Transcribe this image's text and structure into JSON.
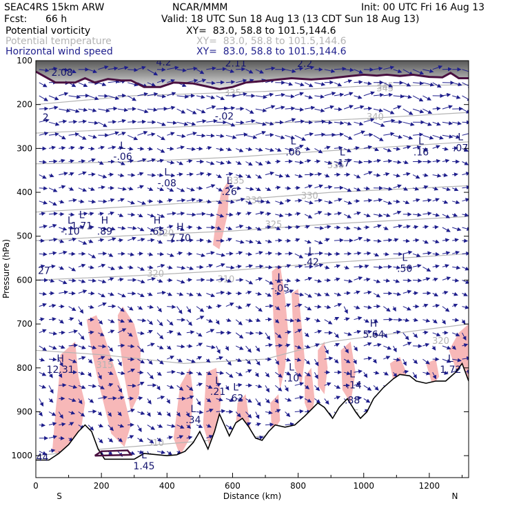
{
  "header": {
    "model": "SEAC4RS 15km ARW",
    "org": "NCAR/MMM",
    "init": "Init: 00 UTC Fri 16 Aug 13",
    "fcst_label": "Fcst:",
    "fcst_value": "66 h",
    "valid": "Valid: 18 UTC Sun 18 Aug 13 (13 CDT Sun 18 Aug 13)"
  },
  "fields": [
    {
      "name": "Potential vorticity",
      "xy": "XY=  83.0, 58.8 to 101.5,144.6",
      "color": "#000000"
    },
    {
      "name": "Potential temperature",
      "xy": "XY=  83.0, 58.8 to 101.5,144.6",
      "color": "#b4b4b4"
    },
    {
      "name": "Horizontal wind speed",
      "xy": "XY=  83.0, 58.8 to 101.5,144.6",
      "color": "#1e1e8c"
    }
  ],
  "chart_data": {
    "type": "cross-section",
    "xlabel": "Distance (km)",
    "ylabel": "Pressure (hPa)",
    "xlim": [
      0,
      1320
    ],
    "ylim": [
      1050,
      100
    ],
    "x_ticks": [
      0,
      200,
      400,
      600,
      800,
      1000,
      1200
    ],
    "y_ticks": [
      100,
      200,
      300,
      400,
      500,
      600,
      700,
      800,
      900,
      1000
    ],
    "endpoint_labels": {
      "left": "S",
      "right": "N"
    },
    "colors": {
      "pv_shade": "#f7b8b8",
      "theta": "#b4b4b4",
      "wind": "#1e1e8c",
      "terrain": "#000000",
      "tropopause": "#4a1040",
      "annot": "#14146e"
    },
    "terrain": [
      [
        0,
        1010
      ],
      [
        40,
        1010
      ],
      [
        70,
        995
      ],
      [
        100,
        975
      ],
      [
        130,
        945
      ],
      [
        150,
        930
      ],
      [
        170,
        945
      ],
      [
        190,
        985
      ],
      [
        210,
        1008
      ],
      [
        300,
        1008
      ],
      [
        330,
        995
      ],
      [
        400,
        1000
      ],
      [
        430,
        998
      ],
      [
        455,
        990
      ],
      [
        480,
        970
      ],
      [
        500,
        945
      ],
      [
        525,
        985
      ],
      [
        545,
        945
      ],
      [
        560,
        905
      ],
      [
        575,
        930
      ],
      [
        590,
        955
      ],
      [
        610,
        925
      ],
      [
        630,
        915
      ],
      [
        650,
        935
      ],
      [
        670,
        960
      ],
      [
        690,
        965
      ],
      [
        710,
        945
      ],
      [
        730,
        930
      ],
      [
        760,
        935
      ],
      [
        790,
        930
      ],
      [
        820,
        910
      ],
      [
        840,
        895
      ],
      [
        860,
        880
      ],
      [
        880,
        890
      ],
      [
        905,
        915
      ],
      [
        925,
        890
      ],
      [
        950,
        870
      ],
      [
        975,
        900
      ],
      [
        990,
        915
      ],
      [
        1010,
        900
      ],
      [
        1030,
        870
      ],
      [
        1060,
        845
      ],
      [
        1090,
        825
      ],
      [
        1110,
        815
      ],
      [
        1140,
        818
      ],
      [
        1160,
        830
      ],
      [
        1190,
        835
      ],
      [
        1220,
        830
      ],
      [
        1250,
        830
      ],
      [
        1280,
        810
      ],
      [
        1300,
        790
      ],
      [
        1320,
        830
      ]
    ],
    "theta_contours": [
      {
        "label": "345",
        "points": [
          [
            0,
            200
          ],
          [
            300,
            180
          ],
          [
            700,
            170
          ],
          [
            1000,
            158
          ],
          [
            1320,
            155
          ]
        ],
        "label_at": [
          1065,
          165
        ]
      },
      {
        "label": "340",
        "points": [
          [
            0,
            265
          ],
          [
            300,
            255
          ],
          [
            700,
            243
          ],
          [
            1000,
            232
          ],
          [
            1320,
            218
          ]
        ],
        "label_at": [
          1035,
          235
        ]
      },
      {
        "label": "335",
        "points": [
          [
            0,
            335
          ],
          [
            300,
            330
          ],
          [
            600,
            320
          ],
          [
            900,
            305
          ],
          [
            1320,
            285
          ]
        ],
        "label_at": [
          610,
          380
        ]
      },
      {
        "label": "330",
        "points": [
          [
            0,
            445
          ],
          [
            300,
            432
          ],
          [
            600,
            418
          ],
          [
            900,
            400
          ],
          [
            1320,
            385
          ]
        ],
        "label_at": [
          665,
          425
        ]
      },
      {
        "label": "325",
        "points": [
          [
            0,
            510
          ],
          [
            300,
            498
          ],
          [
            600,
            488
          ],
          [
            900,
            472
          ],
          [
            1320,
            455
          ]
        ],
        "label_at": [
          725,
          480
        ]
      },
      {
        "label": "320",
        "points": [
          [
            0,
            600
          ],
          [
            300,
            590
          ],
          [
            600,
            578
          ],
          [
            900,
            560
          ],
          [
            1320,
            540
          ]
        ],
        "label_at": [
          365,
          592
        ]
      },
      {
        "label": "315",
        "points": [
          [
            0,
            760
          ],
          [
            200,
            770
          ],
          [
            450,
            790
          ],
          [
            700,
            780
          ],
          [
            900,
            740
          ],
          [
            1320,
            700
          ]
        ],
        "label_at": [
          210,
          800
        ]
      },
      {
        "label": "310",
        "points": [
          [
            0,
            1000
          ],
          [
            200,
            985
          ],
          [
            450,
            970
          ],
          [
            700,
            955
          ]
        ],
        "label_at": [
          365,
          978
        ]
      }
    ],
    "theta_extra_labels": [
      {
        "label": "335",
        "at": [
          600,
          180
        ]
      },
      {
        "label": "345",
        "at": [
          1065,
          170
        ]
      },
      {
        "label": "330",
        "at": [
          835,
          415
        ]
      },
      {
        "label": "335",
        "at": [
          915,
          345
        ]
      },
      {
        "label": "310",
        "at": [
          580,
          605
        ]
      },
      {
        "label": "320",
        "at": [
          395,
          500
        ]
      },
      {
        "label": "315",
        "at": [
          960,
          910
        ]
      },
      {
        "label": "320",
        "at": [
          1235,
          745
        ]
      }
    ],
    "tropopause": [
      [
        0,
        125
      ],
      [
        60,
        150
      ],
      [
        120,
        150
      ],
      [
        150,
        140
      ],
      [
        180,
        150
      ],
      [
        220,
        142
      ],
      [
        260,
        145
      ],
      [
        290,
        145
      ],
      [
        330,
        160
      ],
      [
        380,
        160
      ],
      [
        420,
        150
      ],
      [
        480,
        152
      ],
      [
        560,
        165
      ],
      [
        600,
        160
      ],
      [
        640,
        150
      ],
      [
        700,
        146
      ],
      [
        780,
        140
      ],
      [
        840,
        143
      ],
      [
        900,
        140
      ],
      [
        960,
        135
      ],
      [
        1000,
        132
      ],
      [
        1040,
        134
      ],
      [
        1070,
        132
      ],
      [
        1110,
        135
      ],
      [
        1150,
        132
      ],
      [
        1200,
        137
      ],
      [
        1240,
        138
      ],
      [
        1265,
        128
      ],
      [
        1290,
        140
      ],
      [
        1320,
        140
      ]
    ],
    "pv_labels": [
      {
        "type": "",
        "value": "2.08",
        "x": 80,
        "p": 128
      },
      {
        "type": "",
        "value": "4.2",
        "x": 390,
        "p": 105
      },
      {
        "type": "",
        "value": "2.11",
        "x": 610,
        "p": 107
      },
      {
        "type": "",
        "value": "2.2",
        "x": 820,
        "p": 108
      },
      {
        "type": "",
        "value": "2",
        "x": 30,
        "p": 230
      },
      {
        "type": "",
        "value": "-.02",
        "x": 575,
        "p": 228
      },
      {
        "type": "L",
        "value": "-.06",
        "x": 265,
        "p": 320
      },
      {
        "type": "L",
        "value": "-.08",
        "x": 400,
        "p": 380
      },
      {
        "type": "L",
        "value": ".26",
        "x": 590,
        "p": 400
      },
      {
        "type": "L",
        "value": ".06",
        "x": 785,
        "p": 310
      },
      {
        "type": "L",
        "value": ".17",
        "x": 935,
        "p": 335
      },
      {
        "type": "L",
        "value": ".16",
        "x": 1175,
        "p": 310
      },
      {
        "type": "L",
        "value": ".07",
        "x": 1295,
        "p": 300
      },
      {
        "type": "L",
        "value": "1.71",
        "x": 140,
        "p": 478
      },
      {
        "type": "L",
        "value": "-.10",
        "x": 105,
        "p": 490
      },
      {
        "type": "H",
        "value": ".89",
        "x": 210,
        "p": 490
      },
      {
        "type": "H",
        "value": ".65",
        "x": 370,
        "p": 490
      },
      {
        "type": "H",
        "value": "7.70",
        "x": 440,
        "p": 505
      },
      {
        "type": "",
        "value": "27",
        "x": 25,
        "p": 580
      },
      {
        "type": "L",
        "value": ".42",
        "x": 840,
        "p": 560
      },
      {
        "type": "L",
        "value": ".50",
        "x": 1125,
        "p": 575
      },
      {
        "type": "L",
        "value": "-.05",
        "x": 745,
        "p": 620
      },
      {
        "type": "H",
        "value": "5.64",
        "x": 1030,
        "p": 725
      },
      {
        "type": "H",
        "value": "12.31",
        "x": 75,
        "p": 805
      },
      {
        "type": "L",
        "value": "1.72",
        "x": 1265,
        "p": 805
      },
      {
        "type": "L",
        "value": ".10",
        "x": 780,
        "p": 825
      },
      {
        "type": "L",
        "value": "-.14",
        "x": 965,
        "p": 840
      },
      {
        "type": "L",
        "value": ".21",
        "x": 555,
        "p": 855
      },
      {
        "type": "L",
        "value": ".62",
        "x": 610,
        "p": 870
      },
      {
        "type": "",
        "value": ".88",
        "x": 965,
        "p": 875
      },
      {
        "type": "L",
        "value": ".34",
        "x": 480,
        "p": 920
      },
      {
        "type": "",
        "value": "44",
        "x": 20,
        "p": 1005
      },
      {
        "type": "L",
        "value": "1.45",
        "x": 330,
        "p": 1025
      }
    ],
    "pv_shaded_regions": [
      [
        [
          75,
          770
        ],
        [
          120,
          740
        ],
        [
          130,
          820
        ],
        [
          150,
          880
        ],
        [
          140,
          930
        ],
        [
          110,
          970
        ],
        [
          80,
          1000
        ],
        [
          50,
          990
        ],
        [
          60,
          900
        ],
        [
          70,
          830
        ]
      ],
      [
        [
          155,
          690
        ],
        [
          185,
          680
        ],
        [
          210,
          730
        ],
        [
          240,
          800
        ],
        [
          270,
          870
        ],
        [
          290,
          930
        ],
        [
          270,
          980
        ],
        [
          230,
          950
        ],
        [
          210,
          890
        ],
        [
          190,
          830
        ],
        [
          170,
          760
        ]
      ],
      [
        [
          250,
          680
        ],
        [
          265,
          660
        ],
        [
          300,
          700
        ],
        [
          320,
          760
        ],
        [
          315,
          860
        ],
        [
          290,
          900
        ],
        [
          270,
          820
        ],
        [
          255,
          740
        ]
      ],
      [
        [
          440,
          840
        ],
        [
          470,
          800
        ],
        [
          480,
          860
        ],
        [
          470,
          960
        ],
        [
          440,
          1000
        ],
        [
          420,
          960
        ],
        [
          430,
          900
        ]
      ],
      [
        [
          520,
          810
        ],
        [
          550,
          800
        ],
        [
          565,
          860
        ],
        [
          560,
          920
        ],
        [
          530,
          980
        ],
        [
          510,
          930
        ],
        [
          515,
          870
        ]
      ],
      [
        [
          565,
          400
        ],
        [
          590,
          370
        ],
        [
          585,
          450
        ],
        [
          560,
          530
        ],
        [
          540,
          520
        ],
        [
          550,
          460
        ]
      ],
      [
        [
          720,
          580
        ],
        [
          745,
          565
        ],
        [
          760,
          640
        ],
        [
          770,
          720
        ],
        [
          760,
          800
        ],
        [
          745,
          850
        ],
        [
          735,
          780
        ],
        [
          725,
          700
        ]
      ],
      [
        [
          780,
          630
        ],
        [
          800,
          620
        ],
        [
          810,
          700
        ],
        [
          820,
          780
        ],
        [
          810,
          840
        ],
        [
          790,
          800
        ],
        [
          785,
          720
        ]
      ],
      [
        [
          820,
          820
        ],
        [
          840,
          800
        ],
        [
          850,
          870
        ],
        [
          840,
          920
        ],
        [
          820,
          880
        ]
      ],
      [
        [
          860,
          760
        ],
        [
          880,
          740
        ],
        [
          890,
          800
        ],
        [
          880,
          860
        ],
        [
          860,
          840
        ]
      ],
      [
        [
          930,
          760
        ],
        [
          960,
          740
        ],
        [
          975,
          810
        ],
        [
          960,
          880
        ],
        [
          935,
          850
        ]
      ],
      [
        [
          1080,
          790
        ],
        [
          1110,
          775
        ],
        [
          1130,
          810
        ],
        [
          1120,
          840
        ],
        [
          1090,
          830
        ]
      ],
      [
        [
          1190,
          790
        ],
        [
          1220,
          780
        ],
        [
          1230,
          820
        ],
        [
          1210,
          840
        ]
      ],
      [
        [
          1260,
          760
        ],
        [
          1290,
          720
        ],
        [
          1320,
          700
        ],
        [
          1320,
          830
        ],
        [
          1290,
          820
        ]
      ],
      [
        [
          715,
          880
        ],
        [
          740,
          860
        ],
        [
          745,
          920
        ],
        [
          720,
          950
        ]
      ],
      [
        [
          615,
          880
        ],
        [
          640,
          860
        ],
        [
          655,
          940
        ],
        [
          630,
          970
        ],
        [
          610,
          930
        ]
      ]
    ]
  }
}
